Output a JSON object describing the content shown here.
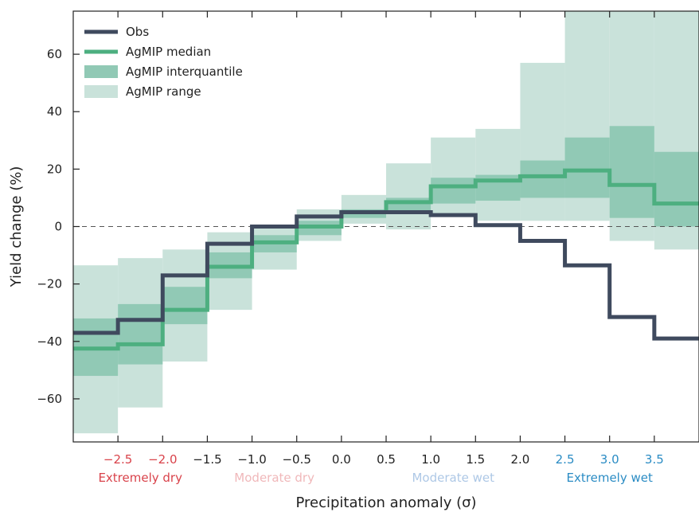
{
  "chart_data": {
    "type": "line",
    "title": "",
    "xlabel": "Precipitation anomaly (σ)",
    "ylabel": "Yield change (%)",
    "xlim": [
      -3.0,
      4.0
    ],
    "ylim": [
      -75,
      75
    ],
    "xticks": [
      {
        "value": -2.5,
        "label": "−2.5",
        "color": "#d9434b"
      },
      {
        "value": -2.0,
        "label": "−2.0",
        "color": "#d9434b"
      },
      {
        "value": -1.5,
        "label": "−1.5",
        "color": "#222222"
      },
      {
        "value": -1.0,
        "label": "−1.0",
        "color": "#222222"
      },
      {
        "value": -0.5,
        "label": "−0.5",
        "color": "#222222"
      },
      {
        "value": 0.0,
        "label": "0.0",
        "color": "#222222"
      },
      {
        "value": 0.5,
        "label": "0.5",
        "color": "#222222"
      },
      {
        "value": 1.0,
        "label": "1.0",
        "color": "#222222"
      },
      {
        "value": 1.5,
        "label": "1.5",
        "color": "#222222"
      },
      {
        "value": 2.0,
        "label": "2.0",
        "color": "#222222"
      },
      {
        "value": 2.5,
        "label": "2.5",
        "color": "#2b8cc4"
      },
      {
        "value": 3.0,
        "label": "3.0",
        "color": "#2b8cc4"
      },
      {
        "value": 3.5,
        "label": "3.5",
        "color": "#2b8cc4"
      }
    ],
    "yticks": [
      {
        "value": 60,
        "label": "60"
      },
      {
        "value": 40,
        "label": "40"
      },
      {
        "value": 20,
        "label": "20"
      },
      {
        "value": 0,
        "label": "0"
      },
      {
        "value": -20,
        "label": "−20"
      },
      {
        "value": -40,
        "label": "−40"
      },
      {
        "value": -60,
        "label": "−60"
      }
    ],
    "category_labels": [
      {
        "label": "Extremely dry",
        "x_center": -2.25,
        "color": "#d9434b"
      },
      {
        "label": "Moderate dry",
        "x_center": -0.75,
        "color": "#f0b8ba"
      },
      {
        "label": "Moderate wet",
        "x_center": 1.25,
        "color": "#aec8e6"
      },
      {
        "label": "Extremely wet",
        "x_center": 3.0,
        "color": "#2b8cc4"
      }
    ],
    "bin_edges": [
      -3.0,
      -2.5,
      -2.0,
      -1.5,
      -1.0,
      -0.5,
      0.0,
      0.5,
      1.0,
      1.5,
      2.0,
      2.5,
      3.0,
      3.5,
      4.0
    ],
    "series": [
      {
        "name": "Obs",
        "color": "#3f4a5e",
        "values": [
          -37,
          -32.5,
          -17,
          -6,
          0,
          3.5,
          5,
          5,
          4,
          0.5,
          -5,
          -13.5,
          -31.5,
          -39
        ]
      },
      {
        "name": "AgMIP median",
        "color": "#4daf80",
        "values": [
          -42.5,
          -41,
          -29,
          -14,
          -5.5,
          0,
          5,
          8.5,
          14,
          16,
          17.5,
          19.5,
          14.5,
          8
        ]
      }
    ],
    "bands": [
      {
        "name": "AgMIP range",
        "color": "#c9e2da",
        "low": [
          -72,
          -63,
          -47,
          -29,
          -15,
          -5,
          1,
          -1,
          4,
          2,
          2,
          2,
          -5,
          -8
        ],
        "high": [
          -13.5,
          -11,
          -8,
          -2,
          0,
          6,
          11,
          22,
          31,
          34,
          57,
          75,
          75,
          75
        ]
      },
      {
        "name": "AgMIP interquantile",
        "color": "#91c9b5",
        "low": [
          -52,
          -48,
          -34,
          -18,
          -9,
          -3,
          3,
          5,
          8,
          9,
          10,
          10,
          3,
          0
        ],
        "high": [
          -32,
          -27,
          -21,
          -9,
          -3,
          2,
          6,
          10,
          17,
          18,
          23,
          31,
          35,
          26
        ]
      }
    ],
    "reference_line": {
      "y": 0,
      "style": "dashed"
    },
    "legend": {
      "placement": "top-left",
      "entries": [
        {
          "label": "Obs",
          "kind": "line",
          "color": "#3f4a5e"
        },
        {
          "label": "AgMIP median",
          "kind": "line",
          "color": "#4daf80"
        },
        {
          "label": "AgMIP interquantile",
          "kind": "patch",
          "color": "#91c9b5"
        },
        {
          "label": "AgMIP range",
          "kind": "patch",
          "color": "#c9e2da"
        }
      ]
    }
  }
}
